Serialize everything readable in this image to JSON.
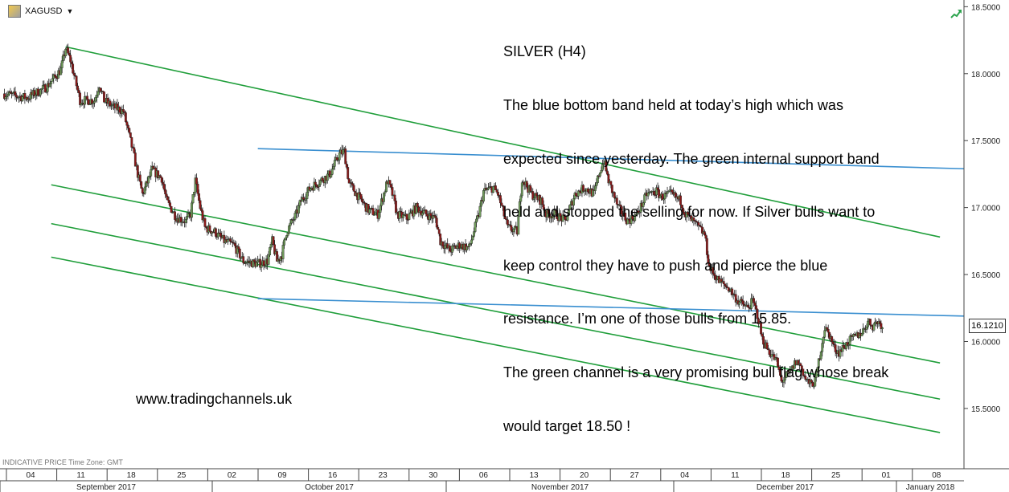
{
  "header": {
    "symbol": "XAGUSD",
    "symbol_icon": "instrument-logo-icon",
    "dropdown_icon": "caret-down-icon"
  },
  "annotation": {
    "lines": [
      "SILVER (H4)",
      "The blue bottom band held at today’s high which was",
      "expected since yesterday. The green internal support band",
      "held and stopped the selling for now. If Silver bulls want to",
      "keep control they have to push and pierce the blue",
      "resistance. I’m one of those bulls from 15.85.",
      "The green channel is a very promising bull flag whose break",
      "would target 18.50 !"
    ]
  },
  "watermark": "www.tradingchannels.uk",
  "footnote": "INDICATIVE PRICE   Time Zone: GMT",
  "last_price_label": "16.1210",
  "chart_data": {
    "type": "candlestick",
    "symbol": "XAGUSD",
    "timeframe": "H4",
    "colors": {
      "up": "#6f9a5a",
      "down": "#8b1a1a",
      "channel": "#1f9e3a",
      "band": "#3a8fd0"
    },
    "y_axis": {
      "ticks": [
        "18.5000",
        "18.0000",
        "17.5000",
        "17.0000",
        "16.5000",
        "16.0000",
        "15.5000"
      ],
      "ylim": [
        15.05,
        18.55
      ]
    },
    "x_axis": {
      "day_ticks": [
        "04",
        "11",
        "18",
        "25",
        "02",
        "09",
        "16",
        "23",
        "30",
        "06",
        "13",
        "20",
        "27",
        "04",
        "11",
        "18",
        "25",
        "01",
        "08"
      ],
      "months": [
        "September 2017",
        "October 2017",
        "November 2017",
        "December 2017",
        "January 2018"
      ]
    },
    "price_path": [
      [
        0,
        17.85
      ],
      [
        5,
        17.82
      ],
      [
        9,
        17.9
      ],
      [
        12,
        18.03
      ],
      [
        13,
        18.19
      ],
      [
        14,
        18.1
      ],
      [
        15,
        17.95
      ],
      [
        16,
        17.8
      ],
      [
        19,
        17.8
      ],
      [
        20,
        17.92
      ],
      [
        21,
        17.8
      ],
      [
        23,
        17.75
      ],
      [
        25,
        17.72
      ],
      [
        27,
        17.42
      ],
      [
        28,
        17.25
      ],
      [
        29,
        17.1
      ],
      [
        31,
        17.28
      ],
      [
        33,
        17.22
      ],
      [
        34,
        17.05
      ],
      [
        36,
        16.93
      ],
      [
        38,
        16.9
      ],
      [
        39,
        16.95
      ],
      [
        40,
        17.2
      ],
      [
        41,
        17.0
      ],
      [
        42,
        16.85
      ],
      [
        44,
        16.82
      ],
      [
        46,
        16.75
      ],
      [
        48,
        16.72
      ],
      [
        50,
        16.6
      ],
      [
        53,
        16.58
      ],
      [
        55,
        16.6
      ],
      [
        56,
        16.75
      ],
      [
        57,
        16.6
      ],
      [
        58,
        16.65
      ],
      [
        59,
        16.82
      ],
      [
        61,
        16.95
      ],
      [
        62,
        17.05
      ],
      [
        64,
        17.15
      ],
      [
        66,
        17.2
      ],
      [
        68,
        17.25
      ],
      [
        70,
        17.4
      ],
      [
        71,
        17.42
      ],
      [
        72,
        17.18
      ],
      [
        74,
        17.08
      ],
      [
        76,
        16.98
      ],
      [
        78,
        16.95
      ],
      [
        80,
        17.2
      ],
      [
        81,
        17.1
      ],
      [
        82,
        16.95
      ],
      [
        84,
        16.92
      ],
      [
        86,
        17.0
      ],
      [
        88,
        16.95
      ],
      [
        90,
        16.92
      ],
      [
        91,
        16.75
      ],
      [
        93,
        16.68
      ],
      [
        95,
        16.72
      ],
      [
        97,
        16.7
      ],
      [
        99,
        16.95
      ],
      [
        100,
        17.12
      ],
      [
        102,
        17.15
      ],
      [
        103,
        17.1
      ],
      [
        105,
        16.85
      ],
      [
        107,
        16.82
      ],
      [
        108,
        17.22
      ],
      [
        110,
        17.1
      ],
      [
        112,
        17.05
      ],
      [
        113,
        16.95
      ],
      [
        115,
        16.95
      ],
      [
        117,
        16.9
      ],
      [
        119,
        17.1
      ],
      [
        121,
        17.15
      ],
      [
        123,
        17.1
      ],
      [
        124,
        17.25
      ],
      [
        125,
        17.35
      ],
      [
        126,
        17.2
      ],
      [
        128,
        17.0
      ],
      [
        130,
        16.9
      ],
      [
        132,
        16.95
      ],
      [
        134,
        17.1
      ],
      [
        136,
        17.12
      ],
      [
        137,
        17.08
      ],
      [
        139,
        17.1
      ],
      [
        141,
        17.05
      ],
      [
        142,
        16.95
      ],
      [
        144,
        16.88
      ],
      [
        146,
        16.8
      ],
      [
        147,
        16.55
      ],
      [
        149,
        16.45
      ],
      [
        151,
        16.4
      ],
      [
        153,
        16.3
      ],
      [
        155,
        16.25
      ],
      [
        156,
        16.3
      ],
      [
        157,
        16.2
      ],
      [
        158,
        16.02
      ],
      [
        159,
        15.95
      ],
      [
        160,
        15.9
      ],
      [
        161,
        15.85
      ],
      [
        162,
        15.7
      ],
      [
        164,
        15.78
      ],
      [
        165,
        15.85
      ],
      [
        166,
        15.82
      ],
      [
        167,
        15.72
      ],
      [
        168,
        15.68
      ],
      [
        169,
        15.7
      ],
      [
        170,
        15.9
      ],
      [
        171,
        16.1
      ],
      [
        172,
        16.05
      ],
      [
        173,
        15.95
      ],
      [
        174,
        15.92
      ],
      [
        176,
        16.0
      ],
      [
        178,
        16.05
      ],
      [
        179,
        16.08
      ],
      [
        180,
        16.15
      ],
      [
        181,
        16.12
      ],
      [
        182,
        16.15
      ],
      [
        183,
        16.12
      ]
    ],
    "trendlines": [
      {
        "name": "green-channel-top",
        "color": "channel",
        "points": [
          [
            13,
            18.2
          ],
          [
            195,
            16.78
          ]
        ]
      },
      {
        "name": "green-channel-mid-1",
        "color": "channel",
        "points": [
          [
            10,
            17.17
          ],
          [
            195,
            15.84
          ]
        ]
      },
      {
        "name": "green-channel-mid-2",
        "color": "channel",
        "points": [
          [
            10,
            16.88
          ],
          [
            195,
            15.57
          ]
        ]
      },
      {
        "name": "green-channel-bottom",
        "color": "channel",
        "points": [
          [
            10,
            16.63
          ],
          [
            195,
            15.32
          ]
        ]
      },
      {
        "name": "blue-resistance-band",
        "color": "band",
        "points": [
          [
            53,
            17.44
          ],
          [
            200,
            17.29
          ]
        ]
      },
      {
        "name": "blue-support-band",
        "color": "band",
        "points": [
          [
            53,
            16.32
          ],
          [
            200,
            16.19
          ]
        ]
      }
    ]
  }
}
